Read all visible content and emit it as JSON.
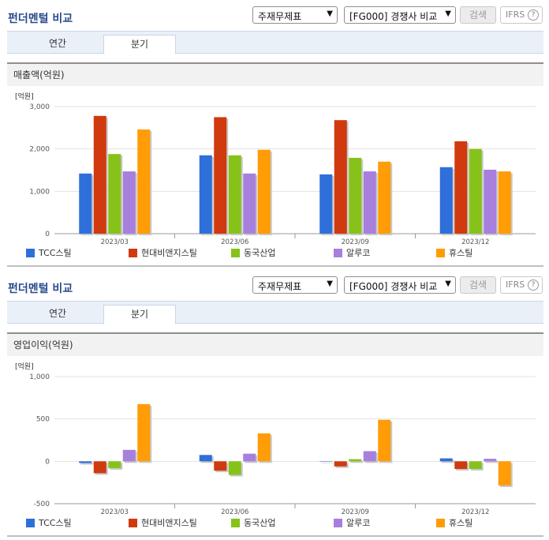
{
  "panels": [
    {
      "title": "펀더멘털 비교",
      "select1": "주재무제표",
      "select2": "[FG000] 경쟁사 비교",
      "search_label": "검색",
      "ifrs_label": "IFRS",
      "help_label": "?",
      "tabs": [
        {
          "label": "연간"
        },
        {
          "label": "분기"
        }
      ],
      "section_title": "매출액(억원)"
    },
    {
      "title": "펀더멘털 비교",
      "select1": "주재무제표",
      "select2": "[FG000] 경쟁사 비교",
      "search_label": "검색",
      "ifrs_label": "IFRS",
      "help_label": "?",
      "tabs": [
        {
          "label": "연간"
        },
        {
          "label": "분기"
        }
      ],
      "section_title": "영업이익(억원)"
    }
  ],
  "colors": {
    "series": [
      "#2e6fd9",
      "#d03a0e",
      "#86c21a",
      "#a77fdc",
      "#ff9c06"
    ],
    "grid": "#e2e2e2",
    "axis": "#9a9a9a"
  },
  "chart_data": [
    {
      "type": "bar",
      "title": "매출액(억원)",
      "unit": "[억원]",
      "categories": [
        "2023/03",
        "2023/06",
        "2023/09",
        "2023/12"
      ],
      "ylim": [
        0,
        3000
      ],
      "yticks": [
        0,
        1000,
        2000,
        3000
      ],
      "ytick_labels": [
        "0",
        "1,000",
        "2,000",
        "3,000"
      ],
      "grid": true,
      "legend": "bottom",
      "series": [
        {
          "name": "TCC스틸",
          "values": [
            1420,
            1850,
            1400,
            1570
          ]
        },
        {
          "name": "현대비앤지스틸",
          "values": [
            2780,
            2750,
            2680,
            2180
          ]
        },
        {
          "name": "동국산업",
          "values": [
            1880,
            1850,
            1790,
            2000
          ]
        },
        {
          "name": "알루코",
          "values": [
            1470,
            1420,
            1470,
            1510
          ]
        },
        {
          "name": "휴스틸",
          "values": [
            2460,
            1980,
            1700,
            1470
          ]
        }
      ]
    },
    {
      "type": "bar",
      "title": "영업이익(억원)",
      "unit": "[억원]",
      "categories": [
        "2023/03",
        "2023/06",
        "2023/09",
        "2023/12"
      ],
      "ylim": [
        -500,
        1000
      ],
      "yticks": [
        -500,
        0,
        500,
        1000
      ],
      "ytick_labels": [
        "-500",
        "0",
        "500",
        "1,000"
      ],
      "grid": true,
      "legend": "bottom",
      "series": [
        {
          "name": "TCC스틸",
          "values": [
            -20,
            75,
            0,
            35
          ]
        },
        {
          "name": "현대비앤지스틸",
          "values": [
            -140,
            -110,
            -60,
            -90
          ]
        },
        {
          "name": "동국산업",
          "values": [
            -80,
            -160,
            25,
            -90
          ]
        },
        {
          "name": "알루코",
          "values": [
            135,
            90,
            120,
            30
          ]
        },
        {
          "name": "휴스틸",
          "values": [
            675,
            330,
            490,
            -285
          ]
        }
      ]
    }
  ]
}
